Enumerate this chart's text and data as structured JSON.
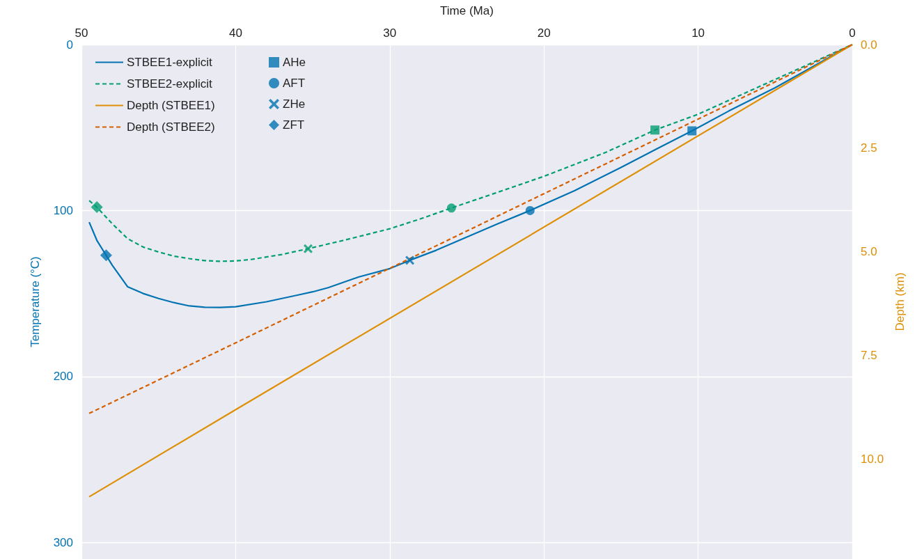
{
  "chart_data": {
    "type": "line",
    "xlabel": "Time (Ma)",
    "ylabel": "Temperature (°C)",
    "y2label": "Depth (km)",
    "xlim": [
      50,
      0
    ],
    "xticks": [
      50,
      40,
      30,
      20,
      10,
      0
    ],
    "ylim": [
      310,
      0
    ],
    "yticks": [
      0,
      100,
      200,
      300
    ],
    "y2lim": [
      12.4,
      0
    ],
    "y2ticks": [
      {
        "value": 0,
        "label": "0.0"
      },
      2.5,
      {
        "value": 5,
        "label": "5.0"
      },
      7.5,
      {
        "value": 10,
        "label": "10.0"
      }
    ],
    "grid": true,
    "legend": "top left",
    "marker": "none",
    "series": [
      {
        "name": "STBEE1-explicit",
        "line_style": "solid",
        "color": "#0173b2",
        "x": [
          49.5,
          49,
          48.4,
          48,
          47,
          46,
          45,
          44,
          43,
          42,
          41,
          40,
          38,
          36,
          35,
          34,
          32,
          30,
          28.7,
          27,
          25,
          23,
          20.9,
          18,
          15,
          12.5,
          10.4,
          8,
          5,
          2.5,
          0
        ],
        "values": [
          107,
          118,
          127,
          133,
          146,
          150,
          153,
          155.5,
          157.5,
          158.3,
          158.4,
          158,
          155,
          151,
          149,
          146.5,
          140,
          135,
          130,
          124,
          116,
          108,
          100,
          88,
          74,
          62,
          52,
          40,
          26,
          13,
          0
        ]
      },
      {
        "name": "STBEE2-explicit",
        "line_style": "dashed",
        "color": "#029e73",
        "x": [
          49.5,
          49,
          48,
          47,
          46,
          45,
          44,
          43,
          42,
          41,
          40,
          39,
          37,
          35.3,
          33,
          30,
          28,
          26,
          23,
          20,
          16,
          12.8,
          10,
          5,
          0
        ],
        "values": [
          94,
          98,
          108,
          117,
          122,
          125,
          127.5,
          129,
          130.2,
          130.6,
          130.4,
          129.5,
          126.5,
          123,
          118,
          111,
          105,
          98.5,
          89,
          79.4,
          65,
          51.5,
          42,
          21,
          0
        ]
      },
      {
        "name": "Depth (STBEE1)",
        "axis": "y2",
        "line_style": "solid",
        "color": "#de8f05",
        "x": [
          49.5,
          40,
          0
        ],
        "values": [
          10.9,
          8.8,
          0
        ]
      },
      {
        "name": "Depth (STBEE2)",
        "axis": "y2",
        "line_style": "dashed",
        "color": "#d55e00",
        "x": [
          49.5,
          40,
          0
        ],
        "values": [
          8.89,
          7.19,
          0
        ]
      },
      {
        "name": "AHe",
        "type": "scatter",
        "marker": "square",
        "color": "#0173b2",
        "x": [
          10.4,
          12.8
        ],
        "values": [
          52,
          51.5
        ],
        "colors": [
          "#0173b2",
          "#029e73"
        ]
      },
      {
        "name": "AFT",
        "type": "scatter",
        "marker": "circle",
        "color": "#0173b2",
        "x": [
          20.9,
          26
        ],
        "values": [
          100,
          98.5
        ],
        "colors": [
          "#0173b2",
          "#029e73"
        ]
      },
      {
        "name": "ZHe",
        "type": "scatter",
        "marker": "cross",
        "color": "#0173b2",
        "x": [
          28.7,
          35.3
        ],
        "values": [
          130,
          123
        ],
        "colors": [
          "#0173b2",
          "#029e73"
        ]
      },
      {
        "name": "ZFT",
        "type": "scatter",
        "marker": "diamond",
        "color": "#0173b2",
        "x": [
          48.4,
          49
        ],
        "values": [
          127,
          98
        ],
        "colors": [
          "#0173b2",
          "#029e73"
        ]
      }
    ]
  }
}
